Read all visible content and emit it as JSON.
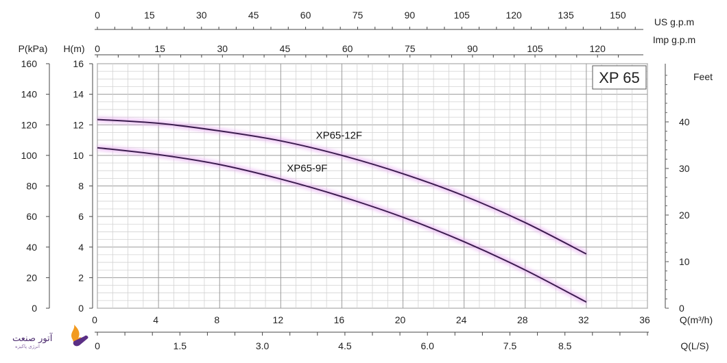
{
  "chart_data": {
    "type": "line",
    "model_label": "XP 65",
    "x": [
      0,
      4,
      8,
      12,
      16,
      20,
      24,
      28,
      32
    ],
    "series": [
      {
        "name": "XP65-12F",
        "color": "#3a1c4d",
        "glow": "#e6a8f0",
        "values": [
          12.35,
          12.1,
          11.6,
          10.95,
          10.0,
          8.8,
          7.35,
          5.6,
          3.55
        ]
      },
      {
        "name": "XP65-9F",
        "color": "#3a1c4d",
        "glow": "#e6a8f0",
        "values": [
          10.5,
          10.05,
          9.4,
          8.45,
          7.3,
          5.95,
          4.35,
          2.5,
          0.4
        ]
      }
    ],
    "xlim": [
      0,
      36
    ],
    "ylim": [
      0,
      16
    ],
    "axes": {
      "bottom_main": {
        "unit": "Q(m³/h)",
        "ticks": [
          "0",
          "4",
          "8",
          "12",
          "16",
          "20",
          "24",
          "28",
          "32",
          "36"
        ],
        "range": [
          0,
          36
        ]
      },
      "bottom_secondary": {
        "unit": "Q(L/S)",
        "ticks": [
          "0",
          "1.5",
          "3.0",
          "4.5",
          "6.0",
          "7.5",
          "8.5"
        ],
        "values": [
          0,
          1.5,
          3.0,
          4.5,
          6.0,
          7.5,
          8.5
        ]
      },
      "top_us": {
        "unit": "US  g.p.m",
        "ticks": [
          "0",
          "15",
          "30",
          "45",
          "60",
          "75",
          "90",
          "105",
          "120",
          "135",
          "150"
        ],
        "values": [
          0,
          15,
          30,
          45,
          60,
          75,
          90,
          105,
          120,
          135,
          150
        ]
      },
      "top_imp": {
        "unit": "Imp  g.p.m",
        "ticks": [
          "0",
          "15",
          "30",
          "45",
          "60",
          "75",
          "90",
          "105",
          "120"
        ],
        "values": [
          0,
          15,
          30,
          45,
          60,
          75,
          90,
          105,
          120
        ]
      },
      "left_h": {
        "unit": "H(m)",
        "ticks": [
          "0",
          "2",
          "4",
          "6",
          "8",
          "10",
          "12",
          "14",
          "16"
        ],
        "range": [
          0,
          16
        ]
      },
      "left_p": {
        "unit": "P(kPa)",
        "ticks": [
          "0",
          "20",
          "40",
          "60",
          "80",
          "100",
          "120",
          "140",
          "160"
        ],
        "range": [
          0,
          160
        ]
      },
      "right_feet": {
        "unit": "Feet",
        "ticks": [
          "0",
          "10",
          "20",
          "30",
          "40"
        ],
        "values": [
          0,
          10,
          20,
          30,
          40
        ]
      }
    },
    "grid": true
  },
  "logo": {
    "text": "آتور صنعت",
    "subtext": "انرژی پاکیزه"
  }
}
